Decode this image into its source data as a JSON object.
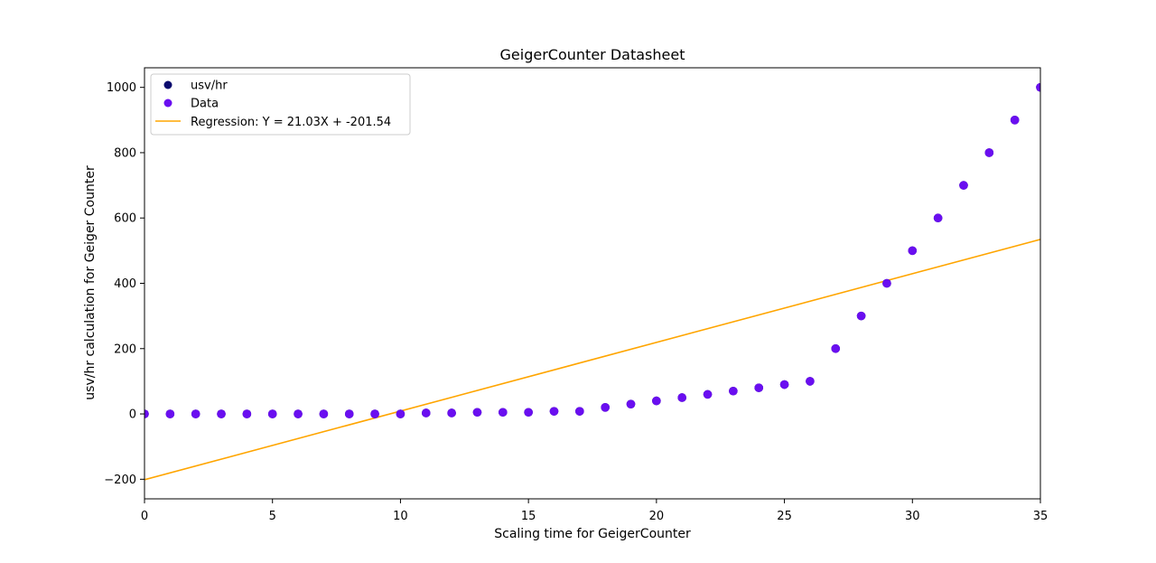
{
  "chart_data": {
    "type": "scatter",
    "title": "GeigerCounter Datasheet",
    "xlabel": "Scaling time for GeigerCounter",
    "ylabel": "usv/hr calculation for Geiger Counter",
    "xlim": [
      0,
      35
    ],
    "ylim": [
      -260,
      1060
    ],
    "xticks": [
      0,
      5,
      10,
      15,
      20,
      25,
      30,
      35
    ],
    "yticks": [
      -200,
      0,
      200,
      400,
      600,
      800,
      1000
    ],
    "grid": false,
    "legend_position": "top-left",
    "series": [
      {
        "name": "usv/hr",
        "kind": "scatter",
        "color": "#0a0a6e",
        "x": [
          0,
          1,
          2,
          3,
          4,
          5,
          6,
          7,
          8,
          9,
          10,
          11,
          12,
          13,
          14,
          15,
          16,
          17,
          18,
          19,
          20,
          21,
          22,
          23,
          24,
          25,
          26,
          27,
          28,
          29,
          30,
          31,
          32,
          33,
          34,
          35
        ],
        "y": [
          0,
          0,
          0,
          0,
          0,
          0,
          0,
          0,
          0,
          0,
          0,
          3,
          3,
          5,
          5,
          5,
          8,
          8,
          20,
          30,
          40,
          50,
          60,
          70,
          80,
          90,
          100,
          200,
          300,
          400,
          500,
          600,
          700,
          800,
          900,
          1000
        ]
      },
      {
        "name": "Data",
        "kind": "scatter",
        "color": "#6a0ef0",
        "x": [
          0,
          1,
          2,
          3,
          4,
          5,
          6,
          7,
          8,
          9,
          10,
          11,
          12,
          13,
          14,
          15,
          16,
          17,
          18,
          19,
          20,
          21,
          22,
          23,
          24,
          25,
          26,
          27,
          28,
          29,
          30,
          31,
          32,
          33,
          34,
          35
        ],
        "y": [
          0,
          0,
          0,
          0,
          0,
          0,
          0,
          0,
          0,
          0,
          0,
          3,
          3,
          5,
          5,
          5,
          8,
          8,
          20,
          30,
          40,
          50,
          60,
          70,
          80,
          90,
          100,
          200,
          300,
          400,
          500,
          600,
          700,
          800,
          900,
          1000
        ]
      },
      {
        "name": "Regression: Y = 21.03X + -201.54",
        "kind": "line",
        "color": "#ffa500",
        "slope": 21.03,
        "intercept": -201.54
      }
    ]
  }
}
